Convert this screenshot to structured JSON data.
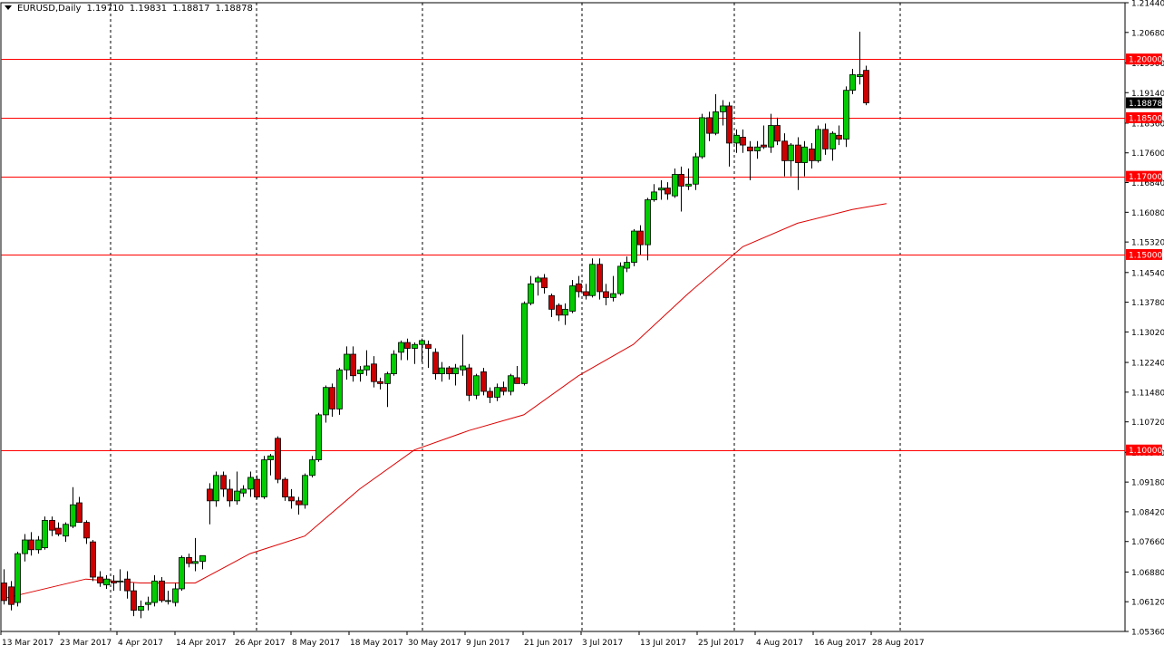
{
  "header": {
    "symbol": "EURUSD,Daily",
    "open": "1.19710",
    "high": "1.19831",
    "low": "1.18817",
    "close": "1.18878"
  },
  "chart_data": {
    "type": "candlestick",
    "symbol": "EURUSD",
    "timeframe": "Daily",
    "ylim": [
      1.0536,
      1.2144
    ],
    "y_ticks": [
      "1.21440",
      "1.20680",
      "1.19900",
      "1.19140",
      "1.18360",
      "1.17600",
      "1.16840",
      "1.16080",
      "1.15320",
      "1.14540",
      "1.13780",
      "1.13020",
      "1.12240",
      "1.11480",
      "1.10720",
      "1.09940",
      "1.09180",
      "1.08420",
      "1.07660",
      "1.06880",
      "1.06120",
      "1.05360"
    ],
    "x_labels": [
      "13 Mar 2017",
      "23 Mar 2017",
      "4 Apr 2017",
      "14 Apr 2017",
      "26 Apr 2017",
      "8 May 2017",
      "18 May 2017",
      "30 May 2017",
      "9 Jun 2017",
      "21 Jun 2017",
      "3 Jul 2017",
      "13 Jul 2017",
      "25 Jul 2017",
      "4 Aug 2017",
      "16 Aug 2017",
      "28 Aug 2017"
    ],
    "current_price": "1.18878",
    "horizontal_levels": [
      {
        "label": "1.20000",
        "value": 1.2
      },
      {
        "label": "1.18500",
        "value": 1.185
      },
      {
        "label": "1.17000",
        "value": 1.17
      },
      {
        "label": "1.15000",
        "value": 1.15
      },
      {
        "label": "1.10000",
        "value": 1.1
      }
    ],
    "colors": {
      "bull": "#00cc00",
      "bear": "#cc0000",
      "wick": "#000000",
      "level": "#ff0000",
      "ma": "#dd0000",
      "axis": "#000000"
    },
    "candles": [
      {
        "o": 1.066,
        "h": 1.0695,
        "l": 1.0605,
        "c": 1.0615
      },
      {
        "o": 1.065,
        "h": 1.0665,
        "l": 1.059,
        "c": 1.0605
      },
      {
        "o": 1.061,
        "h": 1.074,
        "l": 1.06,
        "c": 1.0735
      },
      {
        "o": 1.0735,
        "h": 1.0785,
        "l": 1.0715,
        "c": 1.077
      },
      {
        "o": 1.077,
        "h": 1.079,
        "l": 1.073,
        "c": 1.0745
      },
      {
        "o": 1.0745,
        "h": 1.078,
        "l": 1.0735,
        "c": 1.077
      },
      {
        "o": 1.075,
        "h": 1.083,
        "l": 1.0745,
        "c": 1.082
      },
      {
        "o": 1.082,
        "h": 1.083,
        "l": 1.078,
        "c": 1.0795
      },
      {
        "o": 1.08,
        "h": 1.0815,
        "l": 1.078,
        "c": 1.0785
      },
      {
        "o": 1.078,
        "h": 1.0815,
        "l": 1.0765,
        "c": 1.081
      },
      {
        "o": 1.0805,
        "h": 1.0905,
        "l": 1.08,
        "c": 1.086
      },
      {
        "o": 1.0865,
        "h": 1.088,
        "l": 1.0815,
        "c": 1.0815
      },
      {
        "o": 1.0815,
        "h": 1.082,
        "l": 1.076,
        "c": 1.0775
      },
      {
        "o": 1.0765,
        "h": 1.077,
        "l": 1.0665,
        "c": 1.0675
      },
      {
        "o": 1.0675,
        "h": 1.069,
        "l": 1.065,
        "c": 1.066
      },
      {
        "o": 1.0655,
        "h": 1.068,
        "l": 1.0645,
        "c": 1.067
      },
      {
        "o": 1.0665,
        "h": 1.068,
        "l": 1.064,
        "c": 1.066
      },
      {
        "o": 1.0665,
        "h": 1.0695,
        "l": 1.064,
        "c": 1.0665
      },
      {
        "o": 1.067,
        "h": 1.069,
        "l": 1.062,
        "c": 1.064
      },
      {
        "o": 1.064,
        "h": 1.066,
        "l": 1.0575,
        "c": 1.059
      },
      {
        "o": 1.059,
        "h": 1.0615,
        "l": 1.057,
        "c": 1.06
      },
      {
        "o": 1.0605,
        "h": 1.0625,
        "l": 1.059,
        "c": 1.061
      },
      {
        "o": 1.061,
        "h": 1.068,
        "l": 1.06,
        "c": 1.0665
      },
      {
        "o": 1.0665,
        "h": 1.0675,
        "l": 1.061,
        "c": 1.0615
      },
      {
        "o": 1.0615,
        "h": 1.064,
        "l": 1.0605,
        "c": 1.0615
      },
      {
        "o": 1.061,
        "h": 1.066,
        "l": 1.06,
        "c": 1.0645
      },
      {
        "o": 1.0645,
        "h": 1.073,
        "l": 1.064,
        "c": 1.0725
      },
      {
        "o": 1.0725,
        "h": 1.0735,
        "l": 1.07,
        "c": 1.071
      },
      {
        "o": 1.071,
        "h": 1.0775,
        "l": 1.069,
        "c": 1.0715
      },
      {
        "o": 1.0715,
        "h": 1.073,
        "l": 1.0695,
        "c": 1.073
      },
      {
        "o": 1.09,
        "h": 1.0915,
        "l": 1.081,
        "c": 1.087
      },
      {
        "o": 1.087,
        "h": 1.0945,
        "l": 1.0855,
        "c": 1.0935
      },
      {
        "o": 1.0935,
        "h": 1.0945,
        "l": 1.088,
        "c": 1.09
      },
      {
        "o": 1.09,
        "h": 1.0925,
        "l": 1.0855,
        "c": 1.087
      },
      {
        "o": 1.087,
        "h": 1.0945,
        "l": 1.086,
        "c": 1.0895
      },
      {
        "o": 1.089,
        "h": 1.091,
        "l": 1.088,
        "c": 1.09
      },
      {
        "o": 1.09,
        "h": 1.0945,
        "l": 1.088,
        "c": 1.093
      },
      {
        "o": 1.0925,
        "h": 1.0935,
        "l": 1.0875,
        "c": 1.088
      },
      {
        "o": 1.088,
        "h": 1.0985,
        "l": 1.0875,
        "c": 1.0975
      },
      {
        "o": 1.0975,
        "h": 1.099,
        "l": 1.0935,
        "c": 1.0985
      },
      {
        "o": 1.103,
        "h": 1.1035,
        "l": 1.0915,
        "c": 1.0925
      },
      {
        "o": 1.0925,
        "h": 1.093,
        "l": 1.087,
        "c": 1.088
      },
      {
        "o": 1.088,
        "h": 1.09,
        "l": 1.085,
        "c": 1.087
      },
      {
        "o": 1.087,
        "h": 1.088,
        "l": 1.0835,
        "c": 1.086
      },
      {
        "o": 1.086,
        "h": 1.094,
        "l": 1.085,
        "c": 1.0935
      },
      {
        "o": 1.0935,
        "h": 1.0985,
        "l": 1.093,
        "c": 1.0975
      },
      {
        "o": 1.0975,
        "h": 1.1095,
        "l": 1.097,
        "c": 1.109
      },
      {
        "o": 1.109,
        "h": 1.1165,
        "l": 1.107,
        "c": 1.116
      },
      {
        "o": 1.116,
        "h": 1.117,
        "l": 1.1085,
        "c": 1.1105
      },
      {
        "o": 1.1105,
        "h": 1.121,
        "l": 1.109,
        "c": 1.1205
      },
      {
        "o": 1.1205,
        "h": 1.1265,
        "l": 1.118,
        "c": 1.1245
      },
      {
        "o": 1.1245,
        "h": 1.1265,
        "l": 1.1175,
        "c": 1.119
      },
      {
        "o": 1.1195,
        "h": 1.1215,
        "l": 1.1175,
        "c": 1.1205
      },
      {
        "o": 1.1205,
        "h": 1.1255,
        "l": 1.119,
        "c": 1.1215
      },
      {
        "o": 1.122,
        "h": 1.124,
        "l": 1.116,
        "c": 1.1175
      },
      {
        "o": 1.1175,
        "h": 1.1185,
        "l": 1.1155,
        "c": 1.117
      },
      {
        "o": 1.117,
        "h": 1.12,
        "l": 1.111,
        "c": 1.1195
      },
      {
        "o": 1.1195,
        "h": 1.1255,
        "l": 1.119,
        "c": 1.1245
      },
      {
        "o": 1.125,
        "h": 1.128,
        "l": 1.123,
        "c": 1.1275
      },
      {
        "o": 1.1275,
        "h": 1.1285,
        "l": 1.123,
        "c": 1.126
      },
      {
        "o": 1.126,
        "h": 1.1275,
        "l": 1.122,
        "c": 1.127
      },
      {
        "o": 1.127,
        "h": 1.1285,
        "l": 1.1225,
        "c": 1.128
      },
      {
        "o": 1.127,
        "h": 1.128,
        "l": 1.121,
        "c": 1.126
      },
      {
        "o": 1.125,
        "h": 1.126,
        "l": 1.118,
        "c": 1.1195
      },
      {
        "o": 1.1195,
        "h": 1.1225,
        "l": 1.1175,
        "c": 1.121
      },
      {
        "o": 1.121,
        "h": 1.1215,
        "l": 1.118,
        "c": 1.1195
      },
      {
        "o": 1.1195,
        "h": 1.122,
        "l": 1.1165,
        "c": 1.121
      },
      {
        "o": 1.1205,
        "h": 1.1295,
        "l": 1.119,
        "c": 1.1215
      },
      {
        "o": 1.121,
        "h": 1.122,
        "l": 1.1125,
        "c": 1.114
      },
      {
        "o": 1.114,
        "h": 1.1195,
        "l": 1.113,
        "c": 1.119
      },
      {
        "o": 1.12,
        "h": 1.121,
        "l": 1.114,
        "c": 1.115
      },
      {
        "o": 1.115,
        "h": 1.116,
        "l": 1.112,
        "c": 1.1135
      },
      {
        "o": 1.1135,
        "h": 1.117,
        "l": 1.1125,
        "c": 1.116
      },
      {
        "o": 1.116,
        "h": 1.1175,
        "l": 1.114,
        "c": 1.115
      },
      {
        "o": 1.115,
        "h": 1.1195,
        "l": 1.114,
        "c": 1.119
      },
      {
        "o": 1.1185,
        "h": 1.1215,
        "l": 1.117,
        "c": 1.117
      },
      {
        "o": 1.117,
        "h": 1.138,
        "l": 1.1165,
        "c": 1.1375
      },
      {
        "o": 1.1375,
        "h": 1.1445,
        "l": 1.137,
        "c": 1.1425
      },
      {
        "o": 1.143,
        "h": 1.1445,
        "l": 1.1395,
        "c": 1.144
      },
      {
        "o": 1.144,
        "h": 1.145,
        "l": 1.14,
        "c": 1.1415
      },
      {
        "o": 1.1395,
        "h": 1.14,
        "l": 1.134,
        "c": 1.136
      },
      {
        "o": 1.137,
        "h": 1.1375,
        "l": 1.133,
        "c": 1.1345
      },
      {
        "o": 1.1345,
        "h": 1.1375,
        "l": 1.132,
        "c": 1.136
      },
      {
        "o": 1.1355,
        "h": 1.1435,
        "l": 1.135,
        "c": 1.142
      },
      {
        "o": 1.1425,
        "h": 1.1445,
        "l": 1.139,
        "c": 1.1405
      },
      {
        "o": 1.1405,
        "h": 1.1425,
        "l": 1.1385,
        "c": 1.1395
      },
      {
        "o": 1.1395,
        "h": 1.149,
        "l": 1.139,
        "c": 1.1475
      },
      {
        "o": 1.1475,
        "h": 1.149,
        "l": 1.1385,
        "c": 1.1405
      },
      {
        "o": 1.1405,
        "h": 1.1425,
        "l": 1.137,
        "c": 1.139
      },
      {
        "o": 1.139,
        "h": 1.1445,
        "l": 1.138,
        "c": 1.14
      },
      {
        "o": 1.14,
        "h": 1.148,
        "l": 1.1395,
        "c": 1.147
      },
      {
        "o": 1.1465,
        "h": 1.1495,
        "l": 1.1455,
        "c": 1.148
      },
      {
        "o": 1.148,
        "h": 1.1565,
        "l": 1.147,
        "c": 1.156
      },
      {
        "o": 1.156,
        "h": 1.1575,
        "l": 1.15,
        "c": 1.1525
      },
      {
        "o": 1.1525,
        "h": 1.1645,
        "l": 1.1485,
        "c": 1.164
      },
      {
        "o": 1.164,
        "h": 1.168,
        "l": 1.1635,
        "c": 1.166
      },
      {
        "o": 1.1665,
        "h": 1.169,
        "l": 1.164,
        "c": 1.167
      },
      {
        "o": 1.167,
        "h": 1.1685,
        "l": 1.164,
        "c": 1.1655
      },
      {
        "o": 1.165,
        "h": 1.172,
        "l": 1.1645,
        "c": 1.1705
      },
      {
        "o": 1.1705,
        "h": 1.1725,
        "l": 1.161,
        "c": 1.1675
      },
      {
        "o": 1.1675,
        "h": 1.172,
        "l": 1.1665,
        "c": 1.168
      },
      {
        "o": 1.168,
        "h": 1.176,
        "l": 1.1665,
        "c": 1.175
      },
      {
        "o": 1.175,
        "h": 1.186,
        "l": 1.1745,
        "c": 1.185
      },
      {
        "o": 1.185,
        "h": 1.1865,
        "l": 1.179,
        "c": 1.181
      },
      {
        "o": 1.181,
        "h": 1.191,
        "l": 1.1805,
        "c": 1.1865
      },
      {
        "o": 1.1865,
        "h": 1.1895,
        "l": 1.183,
        "c": 1.188
      },
      {
        "o": 1.188,
        "h": 1.189,
        "l": 1.1725,
        "c": 1.1785
      },
      {
        "o": 1.1785,
        "h": 1.182,
        "l": 1.176,
        "c": 1.1805
      },
      {
        "o": 1.18,
        "h": 1.182,
        "l": 1.176,
        "c": 1.178
      },
      {
        "o": 1.1775,
        "h": 1.179,
        "l": 1.169,
        "c": 1.1765
      },
      {
        "o": 1.1765,
        "h": 1.179,
        "l": 1.1745,
        "c": 1.1775
      },
      {
        "o": 1.178,
        "h": 1.183,
        "l": 1.177,
        "c": 1.1775
      },
      {
        "o": 1.1775,
        "h": 1.186,
        "l": 1.176,
        "c": 1.183
      },
      {
        "o": 1.183,
        "h": 1.185,
        "l": 1.178,
        "c": 1.179
      },
      {
        "o": 1.179,
        "h": 1.181,
        "l": 1.17,
        "c": 1.174
      },
      {
        "o": 1.174,
        "h": 1.1785,
        "l": 1.17,
        "c": 1.178
      },
      {
        "o": 1.178,
        "h": 1.18,
        "l": 1.1665,
        "c": 1.1735
      },
      {
        "o": 1.1735,
        "h": 1.179,
        "l": 1.17,
        "c": 1.1775
      },
      {
        "o": 1.177,
        "h": 1.1785,
        "l": 1.172,
        "c": 1.174
      },
      {
        "o": 1.174,
        "h": 1.183,
        "l": 1.1735,
        "c": 1.182
      },
      {
        "o": 1.182,
        "h": 1.1835,
        "l": 1.1755,
        "c": 1.177
      },
      {
        "o": 1.177,
        "h": 1.1815,
        "l": 1.174,
        "c": 1.181
      },
      {
        "o": 1.1805,
        "h": 1.183,
        "l": 1.178,
        "c": 1.1795
      },
      {
        "o": 1.1795,
        "h": 1.193,
        "l": 1.1775,
        "c": 1.192
      },
      {
        "o": 1.192,
        "h": 1.1975,
        "l": 1.191,
        "c": 1.196
      },
      {
        "o": 1.1955,
        "h": 1.207,
        "l": 1.1935,
        "c": 1.196
      },
      {
        "o": 1.1971,
        "h": 1.1983,
        "l": 1.1882,
        "c": 1.1888
      }
    ],
    "ma": [
      {
        "i": 0,
        "v": 1.062
      },
      {
        "i": 12,
        "v": 1.067
      },
      {
        "i": 20,
        "v": 1.066
      },
      {
        "i": 28,
        "v": 1.066
      },
      {
        "i": 36,
        "v": 1.0735
      },
      {
        "i": 44,
        "v": 1.078
      },
      {
        "i": 52,
        "v": 1.09
      },
      {
        "i": 60,
        "v": 1.1
      },
      {
        "i": 68,
        "v": 1.105
      },
      {
        "i": 76,
        "v": 1.109
      },
      {
        "i": 84,
        "v": 1.119
      },
      {
        "i": 92,
        "v": 1.127
      },
      {
        "i": 100,
        "v": 1.14
      },
      {
        "i": 108,
        "v": 1.152
      },
      {
        "i": 116,
        "v": 1.158
      },
      {
        "i": 124,
        "v": 1.1615
      },
      {
        "i": 129,
        "v": 1.163
      }
    ]
  }
}
